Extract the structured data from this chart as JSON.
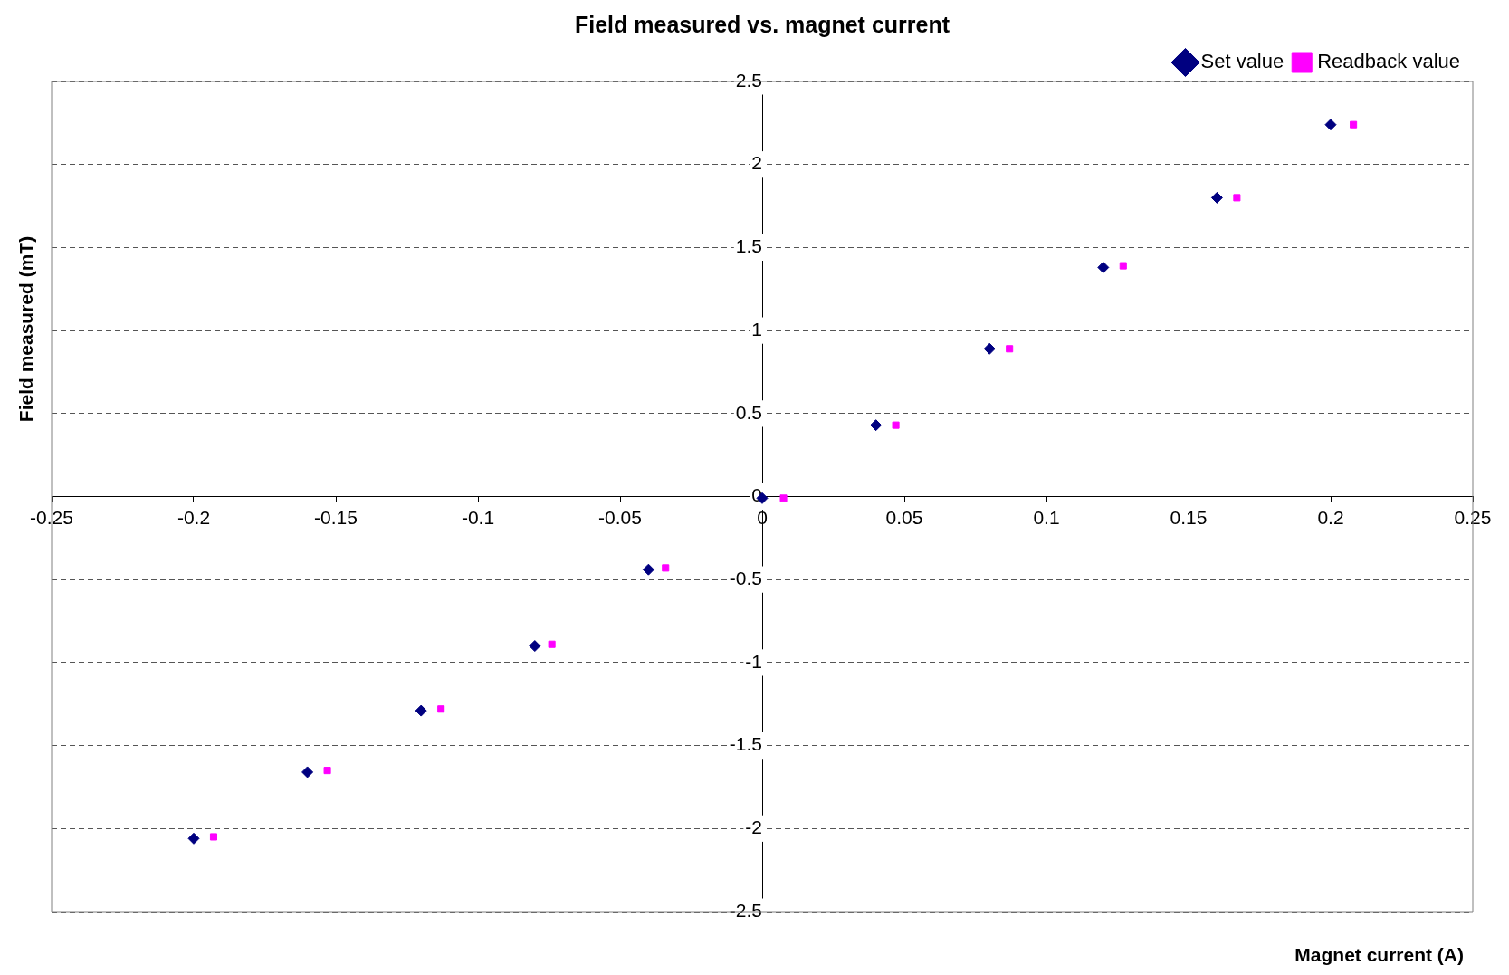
{
  "chart_data": {
    "type": "scatter",
    "title": "Field measured vs. magnet current",
    "xlabel": "Magnet current (A)",
    "ylabel": "Field measured (mT)",
    "series": [
      {
        "name": "Set value",
        "color": "#000080",
        "marker": "diamond",
        "x": [
          -0.2,
          -0.16,
          -0.12,
          -0.08,
          -0.04,
          0,
          0.04,
          0.08,
          0.12,
          0.16,
          0.2
        ],
        "values": [
          -2.06,
          -1.66,
          -1.29,
          -0.9,
          -0.44,
          -0.01,
          0.43,
          0.89,
          1.38,
          1.8,
          2.24
        ]
      },
      {
        "name": "Readback value",
        "color": "#ff00ff",
        "marker": "square",
        "x": [
          -0.193,
          -0.153,
          -0.113,
          -0.074,
          -0.034,
          0.0075,
          0.047,
          0.087,
          0.127,
          0.167,
          0.208
        ],
        "values": [
          -2.05,
          -1.65,
          -1.28,
          -0.89,
          -0.43,
          -0.01,
          0.43,
          0.89,
          1.39,
          1.8,
          2.24
        ]
      }
    ],
    "xlim": [
      -0.25,
      0.25
    ],
    "xticks": [
      -0.25,
      -0.2,
      -0.15,
      -0.1,
      -0.05,
      0,
      0.05,
      0.1,
      0.15,
      0.2,
      0.25
    ],
    "ylim": [
      -2.5,
      2.5
    ],
    "yticks": [
      -2.5,
      -2,
      -1.5,
      -1,
      -0.5,
      0,
      0.5,
      1,
      1.5,
      2,
      2.5
    ],
    "grid": "y",
    "legend": "top right"
  }
}
